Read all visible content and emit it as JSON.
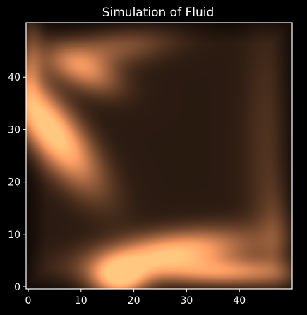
{
  "chart_data": {
    "type": "heatmap",
    "title": "Simulation of Fluid",
    "xlabel": "",
    "ylabel": "",
    "xlim": [
      0,
      50
    ],
    "ylim": [
      0,
      50
    ],
    "x_ticks": [
      0,
      10,
      20,
      30,
      40
    ],
    "y_ticks": [
      0,
      10,
      20,
      30,
      40
    ],
    "colormap": "copper",
    "grid": false,
    "colors": {
      "background": "#000000",
      "frame": "#ffffff",
      "text": "#ffffff",
      "low": "#000000",
      "high": "#ffc77f"
    },
    "blobs": [
      {
        "x": 4.5,
        "y": 30,
        "sx": 3.2,
        "sy": 9,
        "angle": 38,
        "intensity": 0.95
      },
      {
        "x": 11,
        "y": 41,
        "sx": 2.5,
        "sy": 5,
        "angle": 65,
        "intensity": 0.5
      },
      {
        "x": 16,
        "y": 45,
        "sx": 8,
        "sy": 2.5,
        "angle": 10,
        "intensity": 0.3
      },
      {
        "x": 27,
        "y": 6.5,
        "sx": 10,
        "sy": 2.8,
        "angle": 8,
        "intensity": 0.85
      },
      {
        "x": 17.5,
        "y": 2,
        "sx": 3.5,
        "sy": 2.5,
        "angle": 0,
        "intensity": 0.8
      },
      {
        "x": 38,
        "y": 3,
        "sx": 8,
        "sy": 1.8,
        "angle": 0,
        "intensity": 0.55
      },
      {
        "x": 45,
        "y": 25,
        "sx": 3,
        "sy": 18,
        "angle": 0,
        "intensity": 0.12
      },
      {
        "x": 47,
        "y": 10,
        "sx": 2,
        "sy": 6,
        "angle": 0,
        "intensity": 0.15
      },
      {
        "x": 1,
        "y": 42,
        "sx": 1.5,
        "sy": 6,
        "angle": 0,
        "intensity": 0.3
      }
    ],
    "base_level": 0.13
  }
}
